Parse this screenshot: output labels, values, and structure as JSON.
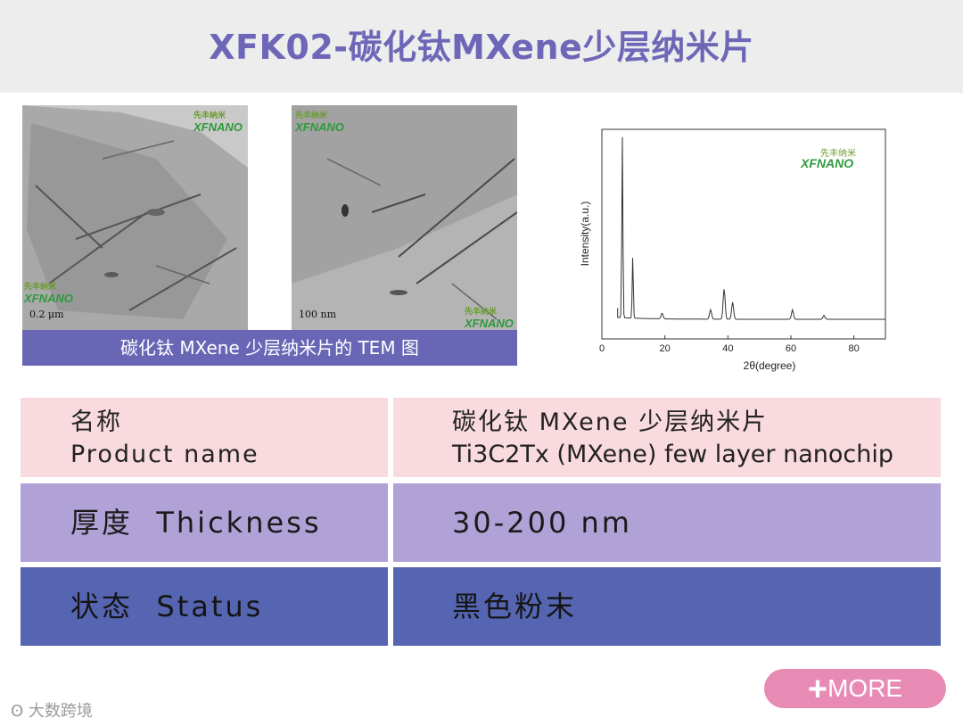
{
  "title": "XFK02-碳化钛MXene少层纳米片",
  "tem": {
    "logo_cn": "先丰纳米",
    "logo_en": "XFNANO",
    "scale_left": "0.2 μm",
    "scale_right": "100 nm",
    "caption": "碳化钛 MXene 少层纳米片的 TEM 图"
  },
  "chart_data": {
    "type": "line",
    "xlabel": "2θ(degree)",
    "ylabel": "Intensity(a.u.)",
    "xlim": [
      0,
      90
    ],
    "x_ticks": [
      "0",
      "20",
      "40",
      "60",
      "80"
    ],
    "grid": false,
    "logo_cn": "先丰纳米",
    "logo_en": "XFNANO",
    "peaks": [
      {
        "x": 6.5,
        "intensity": 0.95
      },
      {
        "x": 9.8,
        "intensity": 0.33
      },
      {
        "x": 19.1,
        "intensity": 0.03
      },
      {
        "x": 34.5,
        "intensity": 0.05
      },
      {
        "x": 38.8,
        "intensity": 0.16
      },
      {
        "x": 41.5,
        "intensity": 0.09
      },
      {
        "x": 60.5,
        "intensity": 0.05
      },
      {
        "x": 70.5,
        "intensity": 0.02
      }
    ]
  },
  "table": {
    "rows": [
      {
        "label_cn": "名称",
        "label_en": "Product name",
        "value_cn": "碳化钛 MXene 少层纳米片",
        "value_en": "Ti3C2Tx (MXene) few layer nanochip"
      },
      {
        "label": "厚度  Thickness",
        "value": "30-200 nm"
      },
      {
        "label": "状态  Status",
        "value": "黑色粉末"
      }
    ]
  },
  "more_button": "MORE",
  "watermark": "大数跨境",
  "colors": {
    "header_bg": "#ededed",
    "title": "#6e67b8",
    "row1": "#f9dadf",
    "row2": "#b0a1d6",
    "row3": "#5565b1",
    "more": "#e88bb4"
  }
}
